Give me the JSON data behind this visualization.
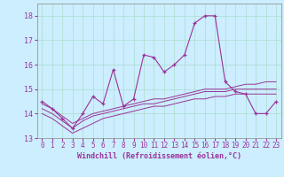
{
  "title": "",
  "xlabel": "Windchill (Refroidissement éolien,°C)",
  "background_color": "#cceeff",
  "grid_color": "#aaddcc",
  "line_color": "#993399",
  "x_values": [
    0,
    1,
    2,
    3,
    4,
    5,
    6,
    7,
    8,
    9,
    10,
    11,
    12,
    13,
    14,
    15,
    16,
    17,
    18,
    19,
    20,
    21,
    22,
    23
  ],
  "y_main": [
    14.5,
    14.2,
    13.8,
    13.4,
    14.0,
    14.7,
    14.4,
    15.8,
    14.3,
    14.6,
    16.4,
    16.3,
    15.7,
    16.0,
    16.4,
    17.7,
    18.0,
    18.0,
    15.3,
    14.9,
    14.8,
    14.0,
    14.0,
    14.5
  ],
  "y_line2": [
    14.4,
    14.2,
    13.9,
    13.6,
    13.8,
    14.0,
    14.1,
    14.2,
    14.3,
    14.4,
    14.5,
    14.6,
    14.6,
    14.7,
    14.8,
    14.9,
    15.0,
    15.0,
    15.0,
    15.1,
    15.2,
    15.2,
    15.3,
    15.3
  ],
  "y_line3": [
    14.2,
    14.0,
    13.7,
    13.4,
    13.7,
    13.9,
    14.0,
    14.1,
    14.2,
    14.3,
    14.4,
    14.4,
    14.5,
    14.6,
    14.7,
    14.8,
    14.9,
    14.9,
    14.9,
    15.0,
    15.0,
    15.0,
    15.0,
    15.0
  ],
  "y_line4": [
    14.0,
    13.8,
    13.5,
    13.2,
    13.4,
    13.6,
    13.8,
    13.9,
    14.0,
    14.1,
    14.2,
    14.3,
    14.3,
    14.4,
    14.5,
    14.6,
    14.6,
    14.7,
    14.7,
    14.8,
    14.8,
    14.8,
    14.8,
    14.8
  ],
  "ylim": [
    13.0,
    18.5
  ],
  "xlim": [
    -0.5,
    23.5
  ],
  "yticks": [
    13,
    14,
    15,
    16,
    17,
    18
  ],
  "xticks": [
    0,
    1,
    2,
    3,
    4,
    5,
    6,
    7,
    8,
    9,
    10,
    11,
    12,
    13,
    14,
    15,
    16,
    17,
    18,
    19,
    20,
    21,
    22,
    23
  ]
}
